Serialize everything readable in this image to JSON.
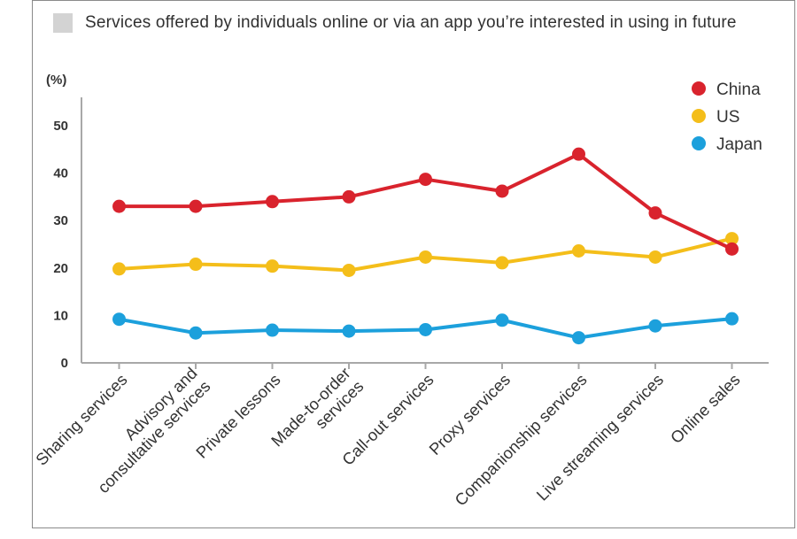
{
  "title": "Services offered by individuals online or via an app you’re interested in using in future",
  "chart_data": {
    "type": "line",
    "title": "Services offered by individuals online or via an app you’re interested in using in future",
    "ylabel": "(%)",
    "xlabel": "",
    "ylim": [
      0,
      55
    ],
    "yticks": [
      0,
      10,
      20,
      30,
      40,
      50
    ],
    "categories": [
      [
        "Sharing services"
      ],
      [
        "Advisory and",
        "consultative services"
      ],
      [
        "Private lessons"
      ],
      [
        "Made-to-order",
        "services"
      ],
      [
        "Call-out services"
      ],
      [
        "Proxy services"
      ],
      [
        "Companionship services"
      ],
      [
        "Live streaming services"
      ],
      [
        "Online sales"
      ]
    ],
    "series": [
      {
        "name": "China",
        "color": "#d9232d",
        "values": [
          33.0,
          33.0,
          34.0,
          35.0,
          38.7,
          36.2,
          44.0,
          31.6,
          24.0
        ]
      },
      {
        "name": "US",
        "color": "#f4be1a",
        "values": [
          19.8,
          20.8,
          20.4,
          19.5,
          22.3,
          21.1,
          23.6,
          22.3,
          26.2
        ]
      },
      {
        "name": "Japan",
        "color": "#1ca0dc",
        "values": [
          9.2,
          6.3,
          6.9,
          6.7,
          7.0,
          9.0,
          5.3,
          7.8,
          9.3
        ]
      }
    ],
    "grid": false,
    "legend": "top-right"
  }
}
